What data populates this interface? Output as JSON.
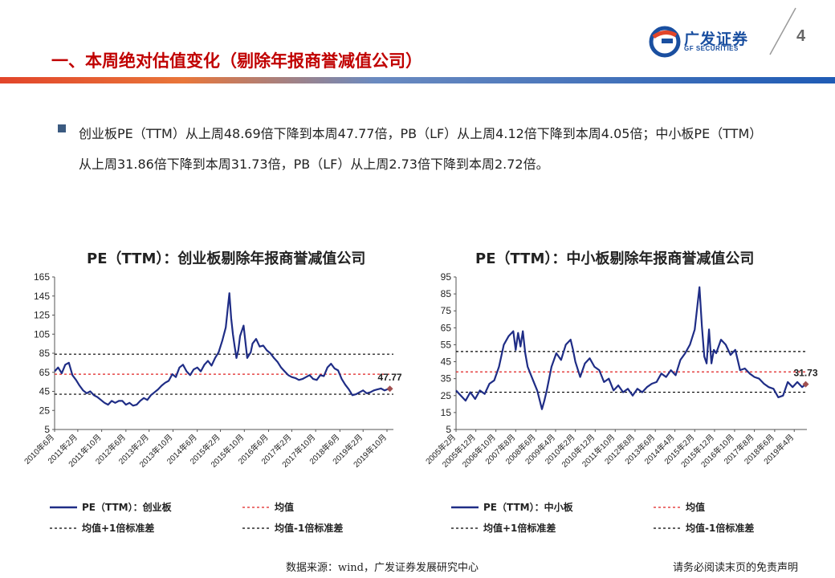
{
  "page_number": "4",
  "logo": {
    "name": "广发证券",
    "sub": "GF SECURITIES"
  },
  "title": "一、本周绝对估值变化（剔除年报商誉减值公司）",
  "bullet": "创业板PE（TTM）从上周48.69倍下降到本周47.77倍，PB（LF）从上周4.12倍下降到本周4.05倍；中小板PE（TTM）从上周31.86倍下降到本周31.73倍，PB（LF）从上周2.73倍下降到本周2.72倍。",
  "footer": {
    "source": "数据来源：wind，广发证券发展研究中心",
    "disclaimer": "请务必阅读末页的免责声明"
  },
  "colors": {
    "series": "#1f2d86",
    "mean": "#e02020",
    "std": "#000000",
    "last_marker": "#a05050"
  },
  "chart_data": [
    {
      "type": "line",
      "title": "PE（TTM）：创业板剔除年报商誉减值公司",
      "ylim": [
        5,
        165
      ],
      "yticks": [
        165,
        145,
        125,
        105,
        85,
        65,
        45,
        25,
        5
      ],
      "xlim": [
        2010.45,
        2019.95
      ],
      "xticks": [
        {
          "label": "2010年6月",
          "x": 2010.45
        },
        {
          "label": "2011年2月",
          "x": 2011.1
        },
        {
          "label": "2011年10月",
          "x": 2011.77
        },
        {
          "label": "2012年6月",
          "x": 2012.45
        },
        {
          "label": "2013年2月",
          "x": 2013.1
        },
        {
          "label": "2013年10月",
          "x": 2013.77
        },
        {
          "label": "2014年6月",
          "x": 2014.45
        },
        {
          "label": "2015年2月",
          "x": 2015.1
        },
        {
          "label": "2015年10月",
          "x": 2015.77
        },
        {
          "label": "2016年6月",
          "x": 2016.45
        },
        {
          "label": "2017年2月",
          "x": 2017.1
        },
        {
          "label": "2017年10月",
          "x": 2017.77
        },
        {
          "label": "2018年6月",
          "x": 2018.45
        },
        {
          "label": "2019年2月",
          "x": 2019.1
        },
        {
          "label": "2019年10月",
          "x": 2019.77
        }
      ],
      "mean": 63,
      "mean_plus_std": 84,
      "mean_minus_std": 42,
      "last_label": "47.77",
      "legend": [
        "PE（TTM）：创业板",
        "均值",
        "均值+1倍标准差",
        "均值-1倍标准差"
      ],
      "series": [
        {
          "name": "PE（TTM）：创业板",
          "x": [
            2010.45,
            2010.55,
            2010.65,
            2010.75,
            2010.85,
            2010.95,
            2011.05,
            2011.15,
            2011.25,
            2011.35,
            2011.45,
            2011.55,
            2011.65,
            2011.75,
            2011.85,
            2011.95,
            2012.05,
            2012.15,
            2012.25,
            2012.35,
            2012.45,
            2012.55,
            2012.65,
            2012.75,
            2012.85,
            2012.95,
            2013.05,
            2013.15,
            2013.25,
            2013.35,
            2013.45,
            2013.55,
            2013.65,
            2013.75,
            2013.85,
            2013.95,
            2014.05,
            2014.15,
            2014.25,
            2014.35,
            2014.45,
            2014.55,
            2014.65,
            2014.75,
            2014.85,
            2014.95,
            2015.05,
            2015.15,
            2015.25,
            2015.35,
            2015.4,
            2015.45,
            2015.5,
            2015.55,
            2015.6,
            2015.65,
            2015.75,
            2015.85,
            2015.95,
            2016.0,
            2016.1,
            2016.2,
            2016.3,
            2016.4,
            2016.5,
            2016.6,
            2016.7,
            2016.8,
            2016.9,
            2017.0,
            2017.1,
            2017.2,
            2017.3,
            2017.4,
            2017.5,
            2017.6,
            2017.7,
            2017.8,
            2017.9,
            2018.0,
            2018.1,
            2018.2,
            2018.3,
            2018.4,
            2018.5,
            2018.6,
            2018.7,
            2018.8,
            2018.9,
            2019.0,
            2019.1,
            2019.2,
            2019.3,
            2019.4,
            2019.5,
            2019.6,
            2019.7,
            2019.77,
            2019.85
          ],
          "y": [
            66,
            70,
            64,
            73,
            75,
            62,
            57,
            51,
            46,
            43,
            45,
            41,
            39,
            36,
            33,
            31,
            35,
            33,
            35,
            35,
            31,
            33,
            30,
            31,
            35,
            38,
            36,
            41,
            44,
            47,
            51,
            54,
            56,
            63,
            60,
            70,
            73,
            66,
            62,
            68,
            70,
            66,
            73,
            77,
            72,
            80,
            86,
            98,
            112,
            148,
            122,
            105,
            92,
            80,
            88,
            103,
            114,
            80,
            86,
            95,
            100,
            92,
            93,
            88,
            85,
            80,
            76,
            70,
            66,
            62,
            60,
            59,
            57,
            58,
            60,
            62,
            58,
            57,
            62,
            61,
            70,
            74,
            69,
            67,
            58,
            52,
            47,
            41,
            42,
            44,
            46,
            43,
            44,
            46,
            47,
            48,
            46,
            47,
            47.77
          ]
        }
      ]
    },
    {
      "type": "line",
      "title": "PE（TTM）：中小板剔除年报商誉减值公司",
      "ylim": [
        5,
        95
      ],
      "yticks": [
        95,
        85,
        75,
        65,
        55,
        45,
        35,
        25,
        15,
        5
      ],
      "xlim": [
        2005.1,
        2019.8
      ],
      "xticks": [
        {
          "label": "2005年2月",
          "x": 2005.1
        },
        {
          "label": "2005年12月",
          "x": 2005.93
        },
        {
          "label": "2006年10月",
          "x": 2006.77
        },
        {
          "label": "2007年8月",
          "x": 2007.6
        },
        {
          "label": "2008年6月",
          "x": 2008.45
        },
        {
          "label": "2009年4月",
          "x": 2009.27
        },
        {
          "label": "2010年2月",
          "x": 2010.1
        },
        {
          "label": "2010年12月",
          "x": 2010.93
        },
        {
          "label": "2011年10月",
          "x": 2011.77
        },
        {
          "label": "2012年8月",
          "x": 2012.6
        },
        {
          "label": "2013年6月",
          "x": 2013.45
        },
        {
          "label": "2014年4月",
          "x": 2014.27
        },
        {
          "label": "2015年2月",
          "x": 2015.1
        },
        {
          "label": "2015年12月",
          "x": 2015.93
        },
        {
          "label": "2016年10月",
          "x": 2016.77
        },
        {
          "label": "2017年8月",
          "x": 2017.6
        },
        {
          "label": "2018年6月",
          "x": 2018.45
        },
        {
          "label": "2019年4月",
          "x": 2019.27
        }
      ],
      "mean": 39,
      "mean_plus_std": 51,
      "mean_minus_std": 27,
      "last_label": "31.73",
      "legend": [
        "PE（TTM）：中小板",
        "均值",
        "均值+1倍标准差",
        "均值-1倍标准差"
      ],
      "series": [
        {
          "name": "PE（TTM）：中小板",
          "x": [
            2005.1,
            2005.3,
            2005.5,
            2005.7,
            2005.9,
            2006.1,
            2006.3,
            2006.5,
            2006.7,
            2006.9,
            2007.1,
            2007.3,
            2007.5,
            2007.6,
            2007.7,
            2007.8,
            2007.9,
            2008.0,
            2008.1,
            2008.3,
            2008.5,
            2008.7,
            2008.8,
            2008.9,
            2009.1,
            2009.3,
            2009.5,
            2009.7,
            2009.9,
            2010.0,
            2010.1,
            2010.3,
            2010.5,
            2010.7,
            2010.9,
            2011.1,
            2011.3,
            2011.5,
            2011.7,
            2011.9,
            2012.1,
            2012.3,
            2012.5,
            2012.7,
            2012.9,
            2013.1,
            2013.3,
            2013.5,
            2013.7,
            2013.9,
            2014.1,
            2014.3,
            2014.5,
            2014.7,
            2014.9,
            2015.1,
            2015.3,
            2015.4,
            2015.5,
            2015.6,
            2015.7,
            2015.8,
            2015.9,
            2016.0,
            2016.2,
            2016.4,
            2016.6,
            2016.8,
            2017.0,
            2017.2,
            2017.4,
            2017.6,
            2017.8,
            2018.0,
            2018.2,
            2018.4,
            2018.6,
            2018.8,
            2019.0,
            2019.2,
            2019.4,
            2019.6,
            2019.75
          ],
          "y": [
            28,
            25,
            22,
            27,
            23,
            28,
            26,
            32,
            34,
            42,
            55,
            60,
            63,
            52,
            62,
            54,
            63,
            50,
            42,
            35,
            28,
            17,
            22,
            28,
            42,
            50,
            46,
            55,
            58,
            52,
            45,
            36,
            44,
            47,
            42,
            40,
            33,
            35,
            28,
            31,
            27,
            29,
            25,
            29,
            27,
            30,
            32,
            33,
            38,
            36,
            40,
            37,
            46,
            50,
            55,
            64,
            89,
            66,
            48,
            44,
            64,
            44,
            52,
            50,
            58,
            55,
            49,
            52,
            40,
            41,
            38,
            36,
            35,
            32,
            30,
            29,
            24,
            25,
            33,
            30,
            33,
            30,
            31.73
          ]
        }
      ]
    }
  ]
}
